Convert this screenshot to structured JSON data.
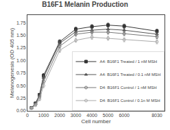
{
  "chart_data": {
    "type": "line",
    "title": "B16F1 Melanin Production",
    "xlabel": "Cell number",
    "ylabel": "Melanogenesis (OD 405 nm)",
    "x": [
      250,
      500,
      750,
      1000,
      2000,
      3000,
      4000,
      5000,
      6000,
      8030
    ],
    "series": [
      {
        "name": "A4: B16F1 Treated / 1 nM MSH",
        "color": "#333333",
        "marker": "square",
        "values": [
          0.06,
          0.15,
          0.32,
          0.7,
          1.37,
          1.62,
          1.67,
          1.7,
          1.68,
          1.58
        ],
        "yerr": [
          0.01,
          0.015,
          0.025,
          0.04,
          0.04,
          0.04,
          0.04,
          0.04,
          0.04,
          0.04
        ]
      },
      {
        "name": "A4: B16F1 Treated / 0.1 nM MSH",
        "color": "#555555",
        "marker": "triangle-up",
        "values": [
          0.06,
          0.14,
          0.3,
          0.66,
          1.34,
          1.57,
          1.6,
          1.62,
          1.6,
          1.52
        ],
        "yerr": [
          0.01,
          0.015,
          0.025,
          0.04,
          0.04,
          0.04,
          0.04,
          0.04,
          0.04,
          0.04
        ]
      },
      {
        "name": "D4: B16F1 Control / 1 nM MSH",
        "color": "#777777",
        "marker": "circle-open",
        "values": [
          0.06,
          0.13,
          0.27,
          0.58,
          1.28,
          1.52,
          1.56,
          1.56,
          1.53,
          1.47
        ],
        "yerr": [
          0.01,
          0.015,
          0.025,
          0.04,
          0.04,
          0.04,
          0.04,
          0.04,
          0.04,
          0.04
        ]
      },
      {
        "name": "D4: B16F1 Control / 0.1n M MSH",
        "color": "#aaaaaa",
        "marker": "circle-open",
        "values": [
          0.05,
          0.11,
          0.23,
          0.5,
          1.2,
          1.4,
          1.46,
          1.44,
          1.41,
          1.37
        ],
        "yerr": [
          0.01,
          0.015,
          0.025,
          0.04,
          0.04,
          0.04,
          0.04,
          0.04,
          0.04,
          0.04
        ]
      }
    ],
    "xlim": [
      0,
      8500
    ],
    "ylim": [
      0.0,
      1.9
    ],
    "xticks": [
      0,
      1000,
      2000,
      3000,
      4000,
      5000,
      6000,
      8030
    ],
    "yticks": [
      {
        "value": 0.0,
        "label": "0.00"
      },
      {
        "value": 0.25,
        "label": "0.25"
      },
      {
        "value": 0.5,
        "label": "0.50"
      },
      {
        "value": 0.75,
        "label": "0.75"
      },
      {
        "value": 1.0,
        "label": "1.00"
      },
      {
        "value": 1.25,
        "label": "1.25"
      },
      {
        "value": 1.5,
        "label": "1.50"
      },
      {
        "value": 1.75,
        "label": "1.75"
      }
    ],
    "grid": false,
    "legend": "lower right"
  }
}
